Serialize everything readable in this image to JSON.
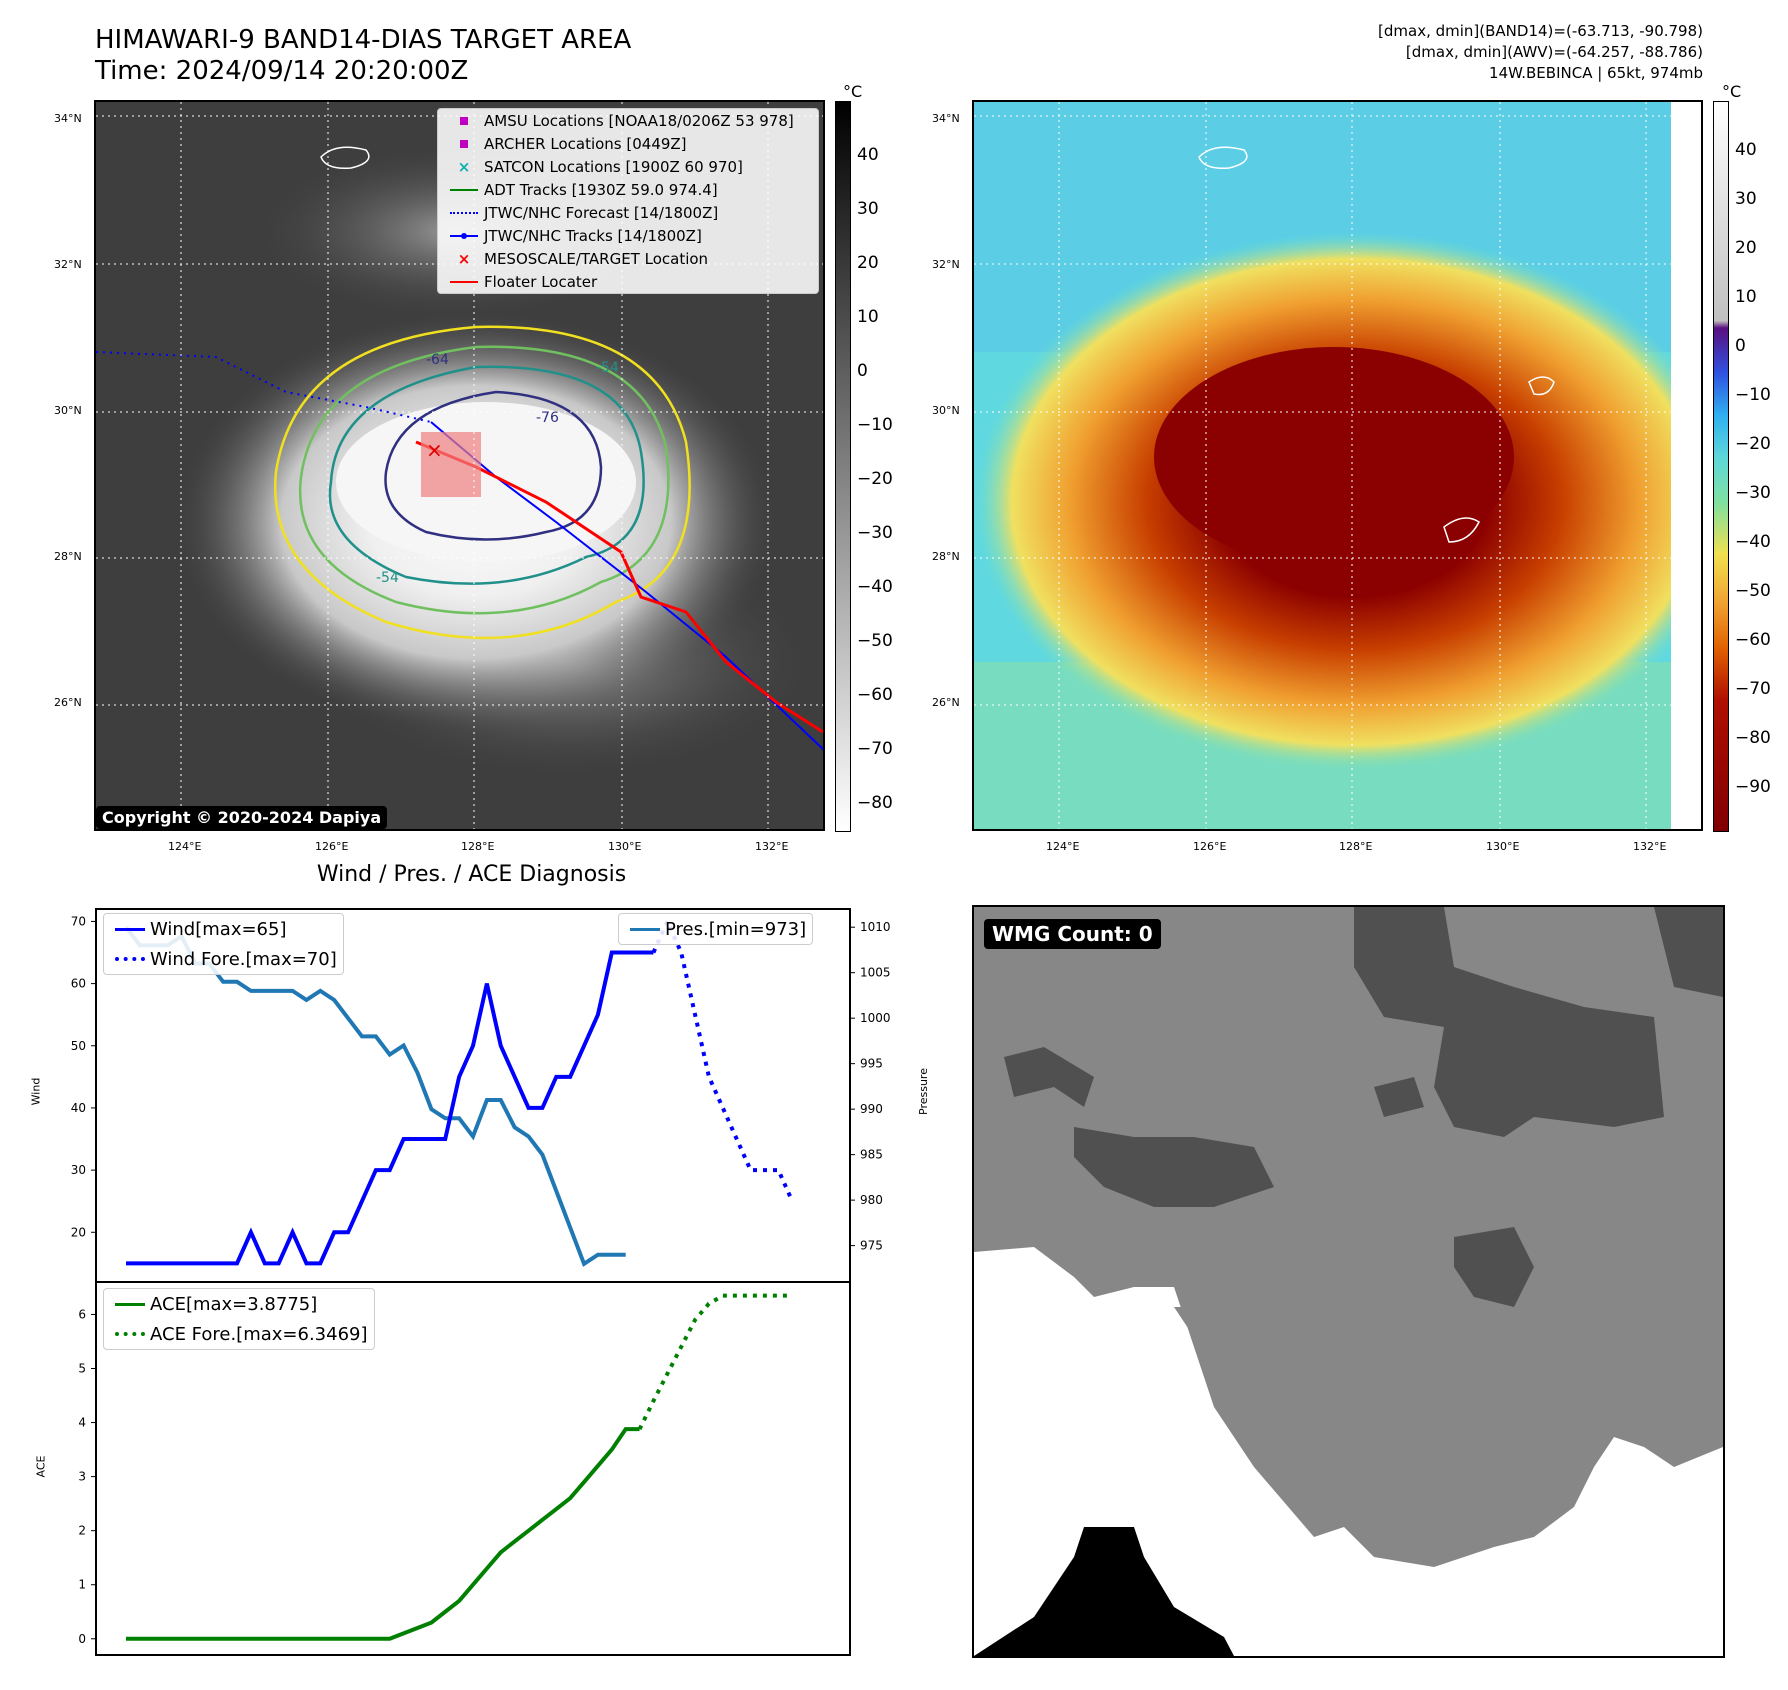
{
  "header": {
    "title_line1": "HIMAWARI-9 BAND14-DIAS TARGET AREA",
    "title_line2": "Time: 2024/09/14 20:20:00Z",
    "info_line1": "[dmax, dmin](BAND14)=(-63.713, -90.798)",
    "info_line2": "[dmax, dmin](AWV)=(-64.257, -88.786)",
    "info_line3": "14W.BEBINCA | 65kt, 974mb"
  },
  "map": {
    "lat_labels": [
      "34°N",
      "32°N",
      "30°N",
      "28°N",
      "26°N"
    ],
    "lon_labels": [
      "124°E",
      "126°E",
      "128°E",
      "130°E",
      "132°E"
    ],
    "copyright": "Copyright © 2020-2024 Dapiya",
    "legend": [
      {
        "label": "AMSU Locations [NOAA18/0206Z 53 978]",
        "color": "#c000c0",
        "marker": "square"
      },
      {
        "label": "ARCHER Locations [0449Z]",
        "color": "#c000c0",
        "marker": "square"
      },
      {
        "label": "SATCON Locations [1900Z 60 970]",
        "color": "#10b0b0",
        "marker": "x"
      },
      {
        "label": "ADT Tracks [1930Z 59.0 974.4]",
        "color": "#008000",
        "marker": "line"
      },
      {
        "label": "JTWC/NHC Forecast [14/1800Z]",
        "color": "#0000ff",
        "marker": "dotted"
      },
      {
        "label": "JTWC/NHC Tracks [14/1800Z]",
        "color": "#0000ff",
        "marker": "dotline"
      },
      {
        "label": "MESOSCALE/TARGET Location",
        "color": "#ff0000",
        "marker": "x"
      },
      {
        "label": "Floater Locater",
        "color": "#ff0000",
        "marker": "line"
      }
    ],
    "contour_labels": [
      "-64",
      "-54",
      "-76",
      "-54"
    ],
    "colorbar_unit": "°C",
    "colorbar_gray_ticks": [
      "40",
      "30",
      "20",
      "10",
      "0",
      "−10",
      "−20",
      "−30",
      "−40",
      "−50",
      "−60",
      "−70",
      "−80"
    ],
    "colorbar_color_ticks": [
      "40",
      "30",
      "20",
      "10",
      "0",
      "−10",
      "−20",
      "−30",
      "−40",
      "−50",
      "−60",
      "−70",
      "−80",
      "−90"
    ]
  },
  "chart_data": [
    {
      "type": "line",
      "title": "Wind / Pres. / ACE Diagnosis",
      "ylabel": "Wind",
      "y2label": "Pressure",
      "ylim": [
        12,
        72
      ],
      "y2lim": [
        971,
        1012
      ],
      "x": [
        0,
        1,
        2,
        3,
        4,
        5,
        6,
        7,
        8,
        9,
        10,
        11,
        12,
        13,
        14,
        15,
        16,
        17,
        18,
        19,
        20,
        21,
        22,
        23,
        24,
        25,
        26,
        27,
        28,
        29,
        30,
        31,
        32,
        33,
        34,
        35,
        36,
        37,
        38,
        39,
        40,
        41,
        42,
        43,
        44,
        45,
        46,
        47,
        48
      ],
      "series": [
        {
          "name": "Wind[max=65]",
          "axis": "left",
          "style": "solid",
          "color": "#0000ff",
          "x": [
            0,
            1,
            2,
            3,
            4,
            5,
            6,
            7,
            8,
            9,
            10,
            11,
            12,
            13,
            14,
            15,
            16,
            17,
            18,
            19,
            20,
            21,
            22,
            23,
            24,
            25,
            26,
            27,
            28,
            29,
            30,
            31,
            32,
            33,
            34,
            35,
            36,
            37,
            38
          ],
          "values": [
            15,
            15,
            15,
            15,
            15,
            15,
            15,
            15,
            15,
            20,
            15,
            15,
            20,
            15,
            15,
            20,
            20,
            25,
            30,
            30,
            35,
            35,
            35,
            35,
            45,
            50,
            60,
            50,
            45,
            40,
            40,
            45,
            45,
            50,
            55,
            65,
            65,
            65,
            65
          ]
        },
        {
          "name": "Wind Fore.[max=70]",
          "axis": "left",
          "style": "dotted",
          "color": "#0000ff",
          "x": [
            38,
            39,
            40,
            41,
            42,
            43,
            44,
            45,
            46,
            47,
            48
          ],
          "values": [
            65,
            70,
            65,
            55,
            45,
            40,
            35,
            30,
            30,
            30,
            25
          ]
        },
        {
          "name": "Pres.[min=973]",
          "axis": "right",
          "style": "solid",
          "color": "#1f77b4",
          "x": [
            0,
            1,
            2,
            3,
            4,
            5,
            6,
            7,
            8,
            9,
            10,
            11,
            12,
            13,
            14,
            15,
            16,
            17,
            18,
            19,
            20,
            21,
            22,
            23,
            24,
            25,
            26,
            27,
            28,
            29,
            30,
            31,
            32,
            33,
            34,
            35,
            36
          ],
          "values": [
            1010,
            1008,
            1008,
            1008,
            1009,
            1006,
            1006,
            1004,
            1004,
            1003,
            1003,
            1003,
            1003,
            1002,
            1003,
            1002,
            1000,
            998,
            998,
            996,
            997,
            994,
            990,
            989,
            989,
            987,
            991,
            991,
            988,
            987,
            985,
            981,
            977,
            973,
            974,
            974,
            974
          ]
        }
      ]
    },
    {
      "type": "line",
      "ylabel": "ACE",
      "ylim": [
        -0.3,
        6.6
      ],
      "series": [
        {
          "name": "ACE[max=3.8775]",
          "style": "solid",
          "color": "#008000",
          "x": [
            0,
            5,
            10,
            15,
            19,
            20,
            22,
            23,
            24,
            25,
            26,
            27,
            28,
            29,
            30,
            31,
            32,
            33,
            34,
            35,
            36,
            37
          ],
          "values": [
            0,
            0,
            0,
            0,
            0,
            0.1,
            0.3,
            0.5,
            0.7,
            1.0,
            1.3,
            1.6,
            1.8,
            2.0,
            2.2,
            2.4,
            2.6,
            2.9,
            3.2,
            3.5,
            3.8775,
            3.8775
          ]
        },
        {
          "name": "ACE Fore.[max=6.3469]",
          "style": "dotted",
          "color": "#008000",
          "x": [
            37,
            38,
            39,
            40,
            41,
            42,
            43,
            44,
            45,
            46,
            47,
            48
          ],
          "values": [
            3.8775,
            4.4,
            4.9,
            5.4,
            5.9,
            6.2,
            6.3469,
            6.3469,
            6.3469,
            6.3469,
            6.3469,
            6.3469
          ]
        }
      ]
    }
  ],
  "panel3": {
    "wind_ticks": [
      "70",
      "60",
      "50",
      "40",
      "30",
      "20"
    ],
    "pres_ticks": [
      "1010",
      "1005",
      "1000",
      "995",
      "990",
      "985",
      "980",
      "975"
    ],
    "ace_ticks": [
      "6",
      "5",
      "4",
      "3",
      "2",
      "1",
      "0"
    ]
  },
  "wmg": {
    "label": "WMG Count: 0"
  }
}
